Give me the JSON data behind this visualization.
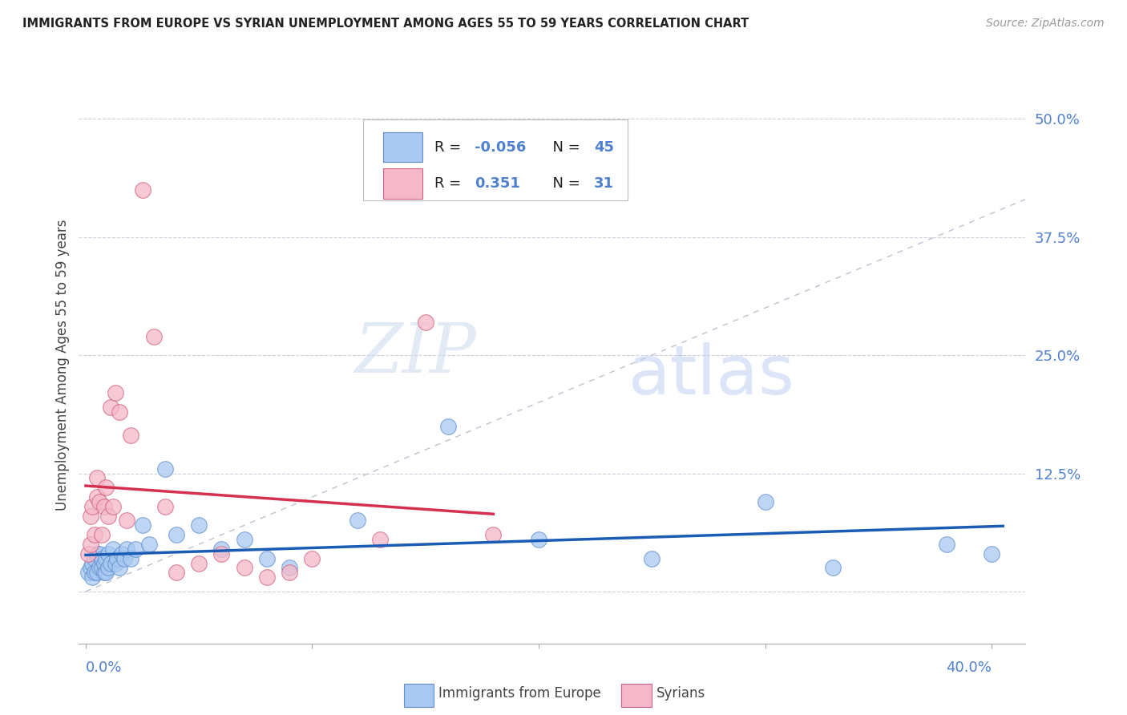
{
  "title": "IMMIGRANTS FROM EUROPE VS SYRIAN UNEMPLOYMENT AMONG AGES 55 TO 59 YEARS CORRELATION CHART",
  "source": "Source: ZipAtlas.com",
  "ylabel": "Unemployment Among Ages 55 to 59 years",
  "yticks": [
    0.0,
    0.125,
    0.25,
    0.375,
    0.5
  ],
  "ytick_labels": [
    "",
    "12.5%",
    "25.0%",
    "37.5%",
    "50.0%"
  ],
  "xlim": [
    -0.003,
    0.415
  ],
  "ylim": [
    -0.055,
    0.535
  ],
  "blue_color": "#a8c8f0",
  "pink_color": "#f5b8c8",
  "blue_edge_color": "#6090d0",
  "pink_edge_color": "#d06080",
  "blue_line_color": "#1a5cb5",
  "pink_line_color": "#d63050",
  "diag_color": "#c0c0d0",
  "tick_color": "#5080d0",
  "legend_R_blue": "-0.056",
  "legend_N_blue": "45",
  "legend_R_pink": "0.351",
  "legend_N_pink": "31",
  "watermark_zip": "ZIP",
  "watermark_atlas": "atlas",
  "blue_x": [
    0.001,
    0.002,
    0.003,
    0.003,
    0.004,
    0.004,
    0.005,
    0.005,
    0.006,
    0.006,
    0.007,
    0.007,
    0.008,
    0.008,
    0.009,
    0.009,
    0.01,
    0.01,
    0.011,
    0.012,
    0.013,
    0.014,
    0.015,
    0.016,
    0.017,
    0.018,
    0.02,
    0.022,
    0.025,
    0.028,
    0.035,
    0.04,
    0.05,
    0.06,
    0.07,
    0.08,
    0.09,
    0.12,
    0.16,
    0.2,
    0.25,
    0.3,
    0.33,
    0.38,
    0.4
  ],
  "blue_y": [
    0.02,
    0.025,
    0.015,
    0.03,
    0.02,
    0.035,
    0.02,
    0.04,
    0.025,
    0.04,
    0.025,
    0.035,
    0.02,
    0.03,
    0.02,
    0.035,
    0.025,
    0.04,
    0.03,
    0.045,
    0.03,
    0.035,
    0.025,
    0.04,
    0.035,
    0.045,
    0.035,
    0.045,
    0.07,
    0.05,
    0.13,
    0.06,
    0.07,
    0.045,
    0.055,
    0.035,
    0.025,
    0.075,
    0.175,
    0.055,
    0.035,
    0.095,
    0.025,
    0.05,
    0.04
  ],
  "pink_x": [
    0.001,
    0.002,
    0.002,
    0.003,
    0.004,
    0.005,
    0.005,
    0.006,
    0.007,
    0.008,
    0.009,
    0.01,
    0.011,
    0.012,
    0.013,
    0.015,
    0.018,
    0.02,
    0.025,
    0.03,
    0.035,
    0.04,
    0.05,
    0.06,
    0.07,
    0.08,
    0.09,
    0.1,
    0.13,
    0.15,
    0.18
  ],
  "pink_y": [
    0.04,
    0.05,
    0.08,
    0.09,
    0.06,
    0.1,
    0.12,
    0.095,
    0.06,
    0.09,
    0.11,
    0.08,
    0.195,
    0.09,
    0.21,
    0.19,
    0.075,
    0.165,
    0.425,
    0.27,
    0.09,
    0.02,
    0.03,
    0.04,
    0.025,
    0.015,
    0.02,
    0.035,
    0.055,
    0.285,
    0.06
  ]
}
